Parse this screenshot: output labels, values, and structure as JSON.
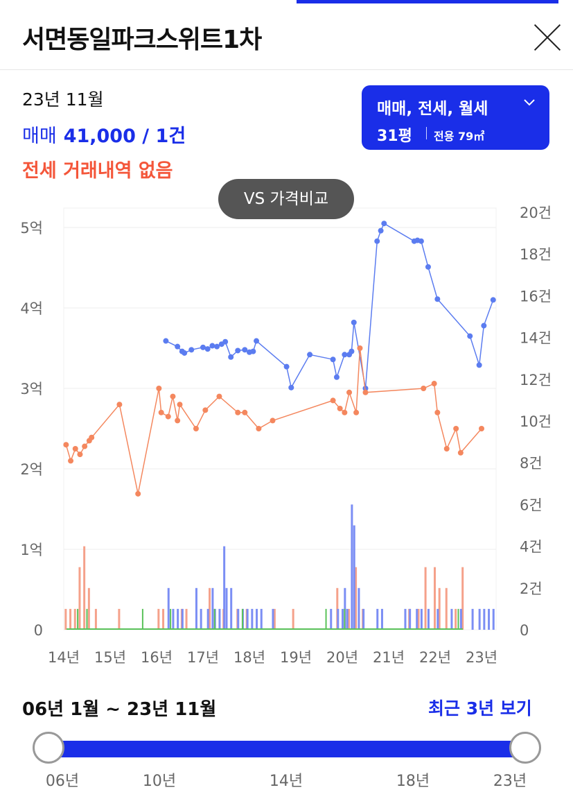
{
  "header": {
    "title": "서면동일파크스위트1차"
  },
  "summary": {
    "period": "23년 11월",
    "sale_label": "매매",
    "sale_value": "41,000 / 1건",
    "jeonse_text": "전세 거래내역 없음"
  },
  "filter": {
    "types": "매매, 전세, 월세",
    "pyeong": "31평",
    "area": "전용 79㎡"
  },
  "vs_button": "VS 가격비교",
  "colors": {
    "accent": "#1a2ee8",
    "sale_line": "#5b7cf0",
    "jeonse_line": "#f4875e",
    "bar_sale": "#7b8ef4",
    "bar_jeonse": "#f5a18a",
    "bar_monthly": "#5ac25a"
  },
  "chart_data": {
    "type": "line",
    "x_ticks": [
      "14년",
      "15년",
      "16년",
      "17년",
      "18년",
      "19년",
      "20년",
      "21년",
      "22년",
      "23년"
    ],
    "y_left_ticks": [
      "0",
      "1억",
      "2억",
      "3억",
      "4억",
      "5억"
    ],
    "y_left_range_eok": [
      0,
      5
    ],
    "y_right_ticks": [
      "0",
      "2건",
      "4건",
      "6건",
      "8건",
      "10건",
      "12건",
      "14건",
      "16건",
      "18건",
      "20건"
    ],
    "y_right_range_count": [
      0,
      20
    ],
    "series": [
      {
        "color": "#5b7cf0",
        "points": [
          [
            2016.2,
            3.59
          ],
          [
            2016.45,
            3.52
          ],
          [
            2016.55,
            3.46
          ],
          [
            2016.6,
            3.44
          ],
          [
            2016.75,
            3.48
          ],
          [
            2017.0,
            3.51
          ],
          [
            2017.1,
            3.49
          ],
          [
            2017.2,
            3.53
          ],
          [
            2017.3,
            3.52
          ],
          [
            2017.4,
            3.55
          ],
          [
            2017.48,
            3.58
          ],
          [
            2017.6,
            3.39
          ],
          [
            2017.75,
            3.47
          ],
          [
            2017.9,
            3.48
          ],
          [
            2018.0,
            3.45
          ],
          [
            2018.08,
            3.46
          ],
          [
            2018.15,
            3.59
          ],
          [
            2018.8,
            3.27
          ],
          [
            2018.9,
            3.01
          ],
          [
            2019.3,
            3.42
          ],
          [
            2019.8,
            3.36
          ],
          [
            2019.88,
            3.14
          ],
          [
            2020.05,
            3.42
          ],
          [
            2020.15,
            3.42
          ],
          [
            2020.2,
            3.46
          ],
          [
            2020.25,
            3.82
          ],
          [
            2020.5,
            3.0
          ],
          [
            2020.75,
            4.83
          ],
          [
            2020.83,
            4.96
          ],
          [
            2020.9,
            5.05
          ],
          [
            2021.55,
            4.83
          ],
          [
            2021.62,
            4.84
          ],
          [
            2021.7,
            4.83
          ],
          [
            2021.85,
            4.51
          ],
          [
            2022.05,
            4.11
          ],
          [
            2022.75,
            3.65
          ],
          [
            2022.95,
            3.29
          ],
          [
            2023.05,
            3.78
          ],
          [
            2023.25,
            4.1
          ]
        ]
      },
      {
        "color": "#f4875e",
        "points": [
          [
            2014.05,
            2.3
          ],
          [
            2014.15,
            2.1
          ],
          [
            2014.25,
            2.25
          ],
          [
            2014.35,
            2.18
          ],
          [
            2014.45,
            2.28
          ],
          [
            2014.55,
            2.35
          ],
          [
            2014.6,
            2.39
          ],
          [
            2015.2,
            2.8
          ],
          [
            2015.6,
            1.69
          ],
          [
            2016.05,
            3.0
          ],
          [
            2016.1,
            2.7
          ],
          [
            2016.25,
            2.65
          ],
          [
            2016.35,
            2.9
          ],
          [
            2016.45,
            2.6
          ],
          [
            2016.5,
            2.8
          ],
          [
            2016.85,
            2.5
          ],
          [
            2017.05,
            2.73
          ],
          [
            2017.35,
            2.9
          ],
          [
            2017.75,
            2.7
          ],
          [
            2017.9,
            2.7
          ],
          [
            2018.2,
            2.5
          ],
          [
            2018.5,
            2.6
          ],
          [
            2019.8,
            2.85
          ],
          [
            2019.95,
            2.75
          ],
          [
            2020.05,
            2.7
          ],
          [
            2020.15,
            2.95
          ],
          [
            2020.3,
            2.7
          ],
          [
            2020.38,
            3.5
          ],
          [
            2020.5,
            2.95
          ],
          [
            2021.75,
            3.0
          ],
          [
            2021.98,
            3.06
          ],
          [
            2022.05,
            2.7
          ],
          [
            2022.25,
            2.25
          ],
          [
            2022.45,
            2.5
          ],
          [
            2022.55,
            2.2
          ],
          [
            2023.0,
            2.5
          ]
        ]
      }
    ],
    "bars_sale": [
      [
        2016.25,
        2
      ],
      [
        2016.35,
        1
      ],
      [
        2016.45,
        1
      ],
      [
        2016.55,
        1
      ],
      [
        2016.85,
        2
      ],
      [
        2016.95,
        1
      ],
      [
        2017.1,
        1
      ],
      [
        2017.2,
        2
      ],
      [
        2017.25,
        1
      ],
      [
        2017.35,
        1
      ],
      [
        2017.45,
        4
      ],
      [
        2017.5,
        2
      ],
      [
        2017.6,
        2
      ],
      [
        2017.75,
        1
      ],
      [
        2017.85,
        1
      ],
      [
        2017.95,
        1
      ],
      [
        2018.05,
        1
      ],
      [
        2018.15,
        1
      ],
      [
        2018.25,
        1
      ],
      [
        2018.5,
        1
      ],
      [
        2019.75,
        1
      ],
      [
        2019.9,
        1
      ],
      [
        2020.0,
        1
      ],
      [
        2020.05,
        2
      ],
      [
        2020.1,
        1
      ],
      [
        2020.2,
        6
      ],
      [
        2020.25,
        5
      ],
      [
        2020.35,
        2
      ],
      [
        2020.45,
        1
      ],
      [
        2020.75,
        1
      ],
      [
        2020.85,
        1
      ],
      [
        2021.35,
        1
      ],
      [
        2021.45,
        1
      ],
      [
        2021.6,
        1
      ],
      [
        2021.7,
        1
      ],
      [
        2021.85,
        1
      ],
      [
        2022.05,
        1
      ],
      [
        2022.35,
        1
      ],
      [
        2022.55,
        1
      ],
      [
        2022.8,
        1
      ],
      [
        2022.95,
        1
      ],
      [
        2023.05,
        1
      ],
      [
        2023.15,
        1
      ],
      [
        2023.25,
        1
      ]
    ],
    "bars_jeonse": [
      [
        2014.05,
        1
      ],
      [
        2014.15,
        1
      ],
      [
        2014.25,
        1
      ],
      [
        2014.35,
        3
      ],
      [
        2014.45,
        4
      ],
      [
        2014.55,
        2
      ],
      [
        2014.7,
        1
      ],
      [
        2015.2,
        1
      ],
      [
        2016.05,
        1
      ],
      [
        2016.15,
        1
      ],
      [
        2016.55,
        1
      ],
      [
        2016.65,
        1
      ],
      [
        2017.15,
        2
      ],
      [
        2017.45,
        1
      ],
      [
        2017.75,
        1
      ],
      [
        2017.95,
        1
      ],
      [
        2018.55,
        1
      ],
      [
        2018.95,
        1
      ],
      [
        2019.9,
        2
      ],
      [
        2020.15,
        1
      ],
      [
        2020.3,
        3
      ],
      [
        2020.45,
        1
      ],
      [
        2021.45,
        1
      ],
      [
        2021.65,
        1
      ],
      [
        2021.8,
        3
      ],
      [
        2022.0,
        3
      ],
      [
        2022.1,
        2
      ],
      [
        2022.25,
        2
      ],
      [
        2022.45,
        1
      ],
      [
        2022.6,
        3
      ]
    ],
    "bars_monthly": [
      [
        2014.3,
        1
      ],
      [
        2014.5,
        1
      ],
      [
        2015.7,
        1
      ],
      [
        2016.3,
        1
      ],
      [
        2017.25,
        1
      ],
      [
        2017.85,
        1
      ],
      [
        2019.65,
        1
      ],
      [
        2020.05,
        1
      ],
      [
        2022.5,
        1
      ]
    ]
  },
  "range": {
    "label": "06년 1월 ~ 23년 11월",
    "recent": "최근 3년 보기",
    "ticks": [
      "06년",
      "10년",
      "14년",
      "18년",
      "23년"
    ]
  }
}
